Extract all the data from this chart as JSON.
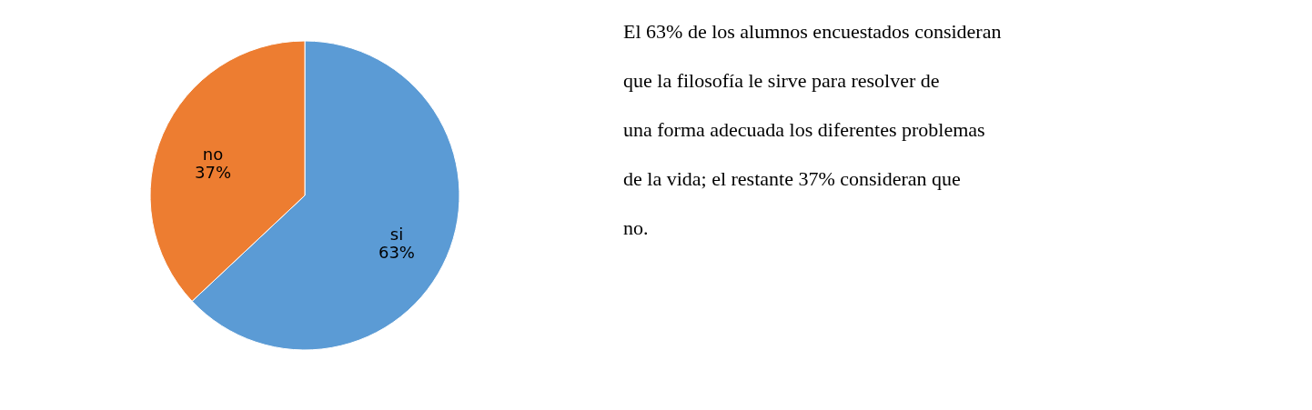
{
  "chart_data": {
    "type": "pie",
    "categories": [
      "si",
      "no"
    ],
    "values": [
      63,
      37
    ],
    "colors": [
      "#5b9bd5",
      "#ed7d31"
    ],
    "value_labels": [
      "63%",
      "37%"
    ],
    "annotations": [
      "El 63% de los alumnos encuestados consideran que la filosofía le sirve para resolver de una forma adecuada los diferentes problemas de la vida; el restante 37% consideran que no."
    ]
  }
}
